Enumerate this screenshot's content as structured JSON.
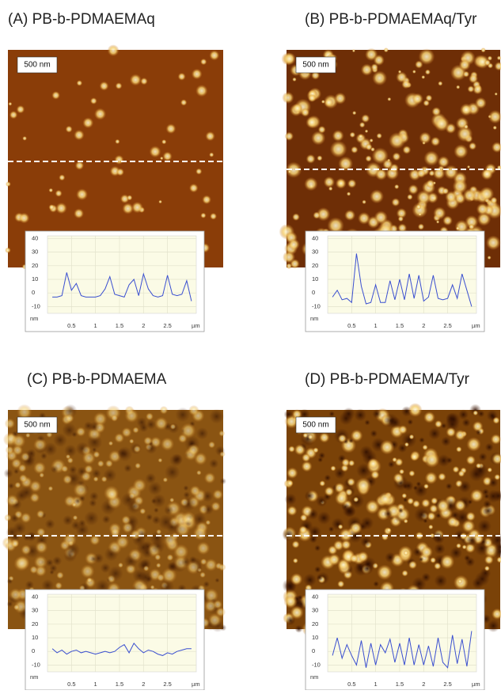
{
  "chart_data": [
    {
      "type": "line",
      "title": "(A) PB-b-PDMAEMAq",
      "scale_bar": "500 nm",
      "x_label": "µm",
      "y_label": "nm",
      "x": [
        0.1,
        0.2,
        0.3,
        0.4,
        0.5,
        0.6,
        0.7,
        0.8,
        0.9,
        1.0,
        1.1,
        1.2,
        1.3,
        1.4,
        1.5,
        1.6,
        1.7,
        1.8,
        1.9,
        2.0,
        2.1,
        2.2,
        2.3,
        2.4,
        2.5,
        2.6,
        2.7,
        2.8,
        2.9,
        3.0
      ],
      "series": [
        {
          "color": "#3a4fd0",
          "values": [
            -3,
            -3,
            -2,
            15,
            2,
            7,
            -2,
            -3,
            -3,
            -3,
            -2,
            3,
            12,
            -1,
            -2,
            -3,
            6,
            10,
            -2,
            14,
            3,
            -2,
            -3,
            -2,
            13,
            -1,
            -2,
            -1,
            9,
            -6
          ]
        }
      ],
      "xlim": [
        0,
        3.1
      ],
      "xticks": [
        0.5,
        1,
        1.5,
        2,
        2.5
      ],
      "ylim": [
        -15,
        42
      ],
      "yticks": [
        -10,
        0,
        10,
        20,
        30,
        40
      ],
      "grid": true
    },
    {
      "type": "line",
      "title": "(B) PB-b-PDMAEMAq/Tyr",
      "scale_bar": "500 nm",
      "x_label": "µm",
      "y_label": "nm",
      "x": [
        0.1,
        0.2,
        0.3,
        0.4,
        0.5,
        0.6,
        0.7,
        0.8,
        0.9,
        1.0,
        1.1,
        1.2,
        1.3,
        1.4,
        1.5,
        1.6,
        1.7,
        1.8,
        1.9,
        2.0,
        2.1,
        2.2,
        2.3,
        2.4,
        2.5,
        2.6,
        2.7,
        2.8,
        2.9,
        3.0
      ],
      "series": [
        {
          "color": "#3a4fd0",
          "values": [
            -3,
            2,
            -5,
            -4,
            -7,
            29,
            5,
            -8,
            -7,
            6,
            -7,
            -7,
            9,
            -5,
            10,
            -5,
            14,
            -4,
            13,
            -6,
            -3,
            13,
            -4,
            -5,
            -4,
            6,
            -4,
            14,
            2,
            -10
          ]
        }
      ],
      "xlim": [
        0,
        3.1
      ],
      "xticks": [
        0.5,
        1,
        1.5,
        2,
        2.5
      ],
      "ylim": [
        -15,
        42
      ],
      "yticks": [
        -10,
        0,
        10,
        20,
        30,
        40
      ],
      "grid": true
    },
    {
      "type": "line",
      "title": "(C) PB-b-PDMAEMA",
      "scale_bar": "500 nm",
      "x_label": "µm",
      "y_label": "nm",
      "x": [
        0.1,
        0.2,
        0.3,
        0.4,
        0.5,
        0.6,
        0.7,
        0.8,
        0.9,
        1.0,
        1.1,
        1.2,
        1.3,
        1.4,
        1.5,
        1.6,
        1.7,
        1.8,
        1.9,
        2.0,
        2.1,
        2.2,
        2.3,
        2.4,
        2.5,
        2.6,
        2.7,
        2.8,
        2.9,
        3.0
      ],
      "series": [
        {
          "color": "#3a4fd0",
          "values": [
            2,
            -1,
            1,
            -2,
            0,
            1,
            -1,
            0,
            -1,
            -2,
            -1,
            0,
            -1,
            0,
            3,
            5,
            -1,
            6,
            2,
            -1,
            1,
            0,
            -2,
            -3,
            -1,
            -2,
            0,
            1,
            2,
            2
          ]
        }
      ],
      "xlim": [
        0,
        3.1
      ],
      "xticks": [
        0.5,
        1,
        1.5,
        2,
        2.5
      ],
      "ylim": [
        -15,
        42
      ],
      "yticks": [
        -10,
        0,
        10,
        20,
        30,
        40
      ],
      "grid": true
    },
    {
      "type": "line",
      "title": "(D) PB-b-PDMAEMA/Tyr",
      "scale_bar": "500 nm",
      "x_label": "µm",
      "y_label": "nm",
      "x": [
        0.1,
        0.2,
        0.3,
        0.4,
        0.5,
        0.6,
        0.7,
        0.8,
        0.9,
        1.0,
        1.1,
        1.2,
        1.3,
        1.4,
        1.5,
        1.6,
        1.7,
        1.8,
        1.9,
        2.0,
        2.1,
        2.2,
        2.3,
        2.4,
        2.5,
        2.6,
        2.7,
        2.8,
        2.9,
        3.0
      ],
      "series": [
        {
          "color": "#3a4fd0",
          "values": [
            -3,
            10,
            -5,
            5,
            -3,
            -10,
            8,
            -12,
            6,
            -10,
            5,
            -1,
            9,
            -8,
            6,
            -10,
            10,
            -10,
            5,
            -10,
            4,
            -11,
            10,
            -8,
            -12,
            12,
            -9,
            9,
            -11,
            15
          ]
        }
      ],
      "xlim": [
        0,
        3.1
      ],
      "xticks": [
        0.5,
        1,
        1.5,
        2,
        2.5
      ],
      "ylim": [
        -15,
        42
      ],
      "yticks": [
        -10,
        0,
        10,
        20,
        30,
        40
      ],
      "grid": true
    }
  ]
}
